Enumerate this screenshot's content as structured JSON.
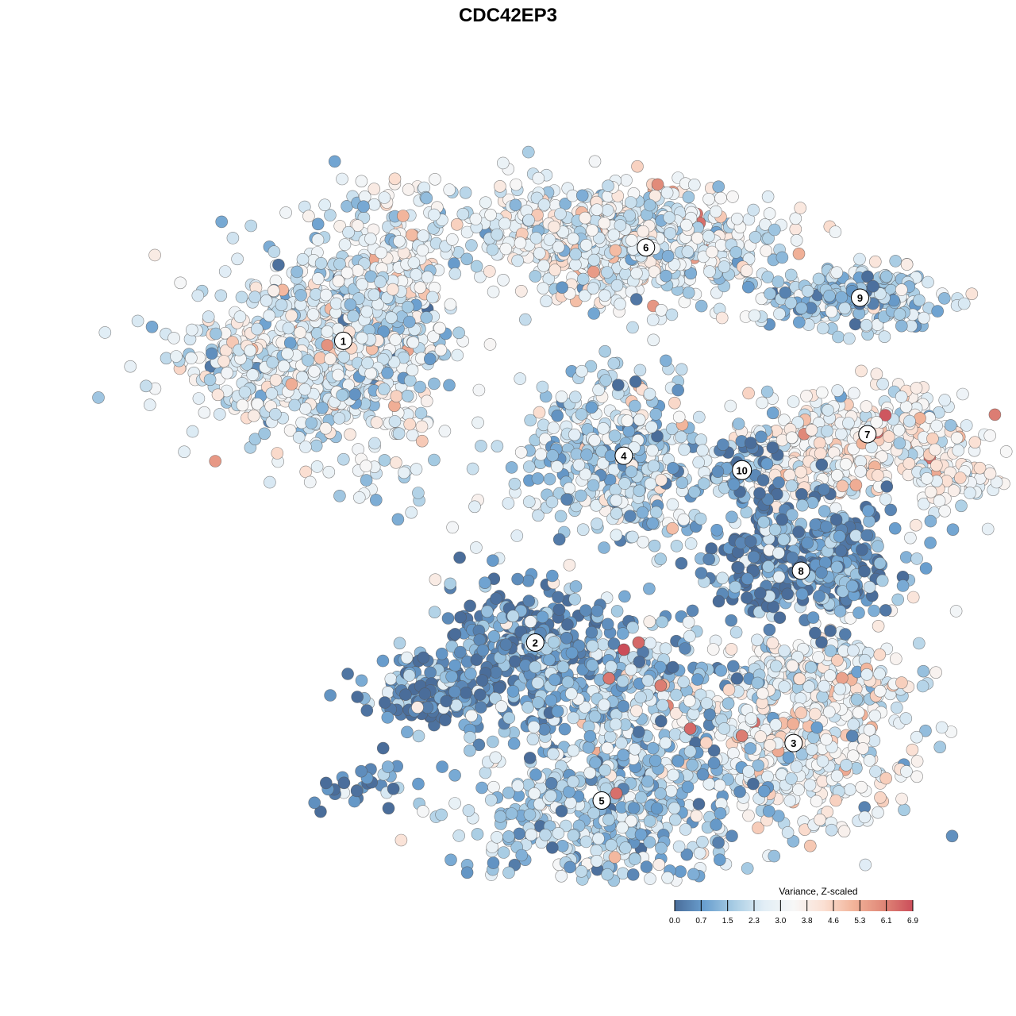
{
  "chart_data": {
    "type": "scatter",
    "title": "CDC42EP3",
    "xlabel": "",
    "ylabel": "",
    "grid": false,
    "axes_visible": false,
    "legend": {
      "title": "Variance, Z-scaled",
      "placement": "bottom-right",
      "ticks": [
        "0.0",
        "0.7",
        "1.5",
        "2.3",
        "3.0",
        "3.8",
        "4.6",
        "5.3",
        "6.1",
        "6.9"
      ],
      "range": [
        0.0,
        6.9
      ],
      "colors": [
        "#4a6d9a",
        "#6a9fcf",
        "#a9cde4",
        "#e2eef6",
        "#f7f7f7",
        "#fbe0d3",
        "#f2b49a",
        "#e08878",
        "#cb4e5a"
      ]
    },
    "clusters": [
      {
        "label": "1",
        "x": 0.25,
        "y": 0.73,
        "mean_value": 2.6
      },
      {
        "label": "2",
        "x": 0.51,
        "y": 0.31,
        "mean_value": 0.7
      },
      {
        "label": "3",
        "x": 0.86,
        "y": 0.17,
        "mean_value": 2.9
      },
      {
        "label": "4",
        "x": 0.63,
        "y": 0.57,
        "mean_value": 2.0
      },
      {
        "label": "5",
        "x": 0.6,
        "y": 0.09,
        "mean_value": 1.7
      },
      {
        "label": "6",
        "x": 0.66,
        "y": 0.86,
        "mean_value": 2.8
      },
      {
        "label": "7",
        "x": 0.96,
        "y": 0.6,
        "mean_value": 3.3
      },
      {
        "label": "8",
        "x": 0.87,
        "y": 0.41,
        "mean_value": 0.6
      },
      {
        "label": "9",
        "x": 0.95,
        "y": 0.79,
        "mean_value": 1.8
      },
      {
        "label": "10",
        "x": 0.79,
        "y": 0.55,
        "mean_value": 0.5
      }
    ],
    "notable_points": [
      {
        "x": 0.63,
        "y": 0.3,
        "value": 6.9
      },
      {
        "x": 0.65,
        "y": 0.31,
        "value": 6.5
      },
      {
        "x": 0.61,
        "y": 0.26,
        "value": 6.3
      },
      {
        "x": 0.72,
        "y": 0.19,
        "value": 6.5
      },
      {
        "x": 0.79,
        "y": 0.18,
        "value": 6.2
      },
      {
        "x": 0.62,
        "y": 0.1,
        "value": 6.4
      },
      {
        "x": 0.68,
        "y": 0.25,
        "value": 6.2
      }
    ]
  }
}
